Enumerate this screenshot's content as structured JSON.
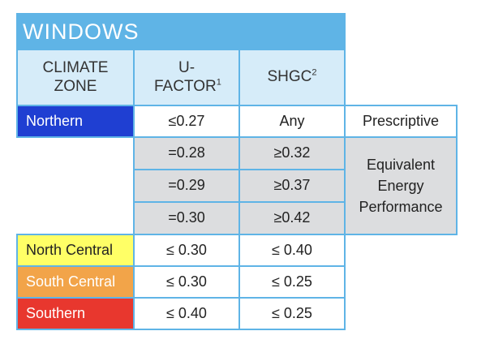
{
  "title": "WINDOWS",
  "headers": {
    "climate_zone": "CLIMATE ZONE",
    "u_factor": "U-FACTOR",
    "u_factor_note": "1",
    "shgc": "SHGC",
    "shgc_note": "2"
  },
  "northern": {
    "zone": "Northern",
    "u": "≤0.27",
    "shgc": "Any",
    "label": "Prescriptive"
  },
  "equivalent": {
    "label": "Equivalent Energy Performance",
    "rows": [
      {
        "u": "=0.28",
        "shgc": "≥0.32"
      },
      {
        "u": "=0.29",
        "shgc": "≥0.37"
      },
      {
        "u": "=0.30",
        "shgc": "≥0.42"
      }
    ]
  },
  "zones": [
    {
      "zone": "North Central",
      "u": "≤ 0.30",
      "shgc": "≤ 0.40",
      "color": "#ffff66"
    },
    {
      "zone": "South Central",
      "u": "≤ 0.30",
      "shgc": "≤ 0.25",
      "color": "#f2a449"
    },
    {
      "zone": "Southern",
      "u": "≤ 0.40",
      "shgc": "≤ 0.25",
      "color": "#e8372e"
    }
  ]
}
